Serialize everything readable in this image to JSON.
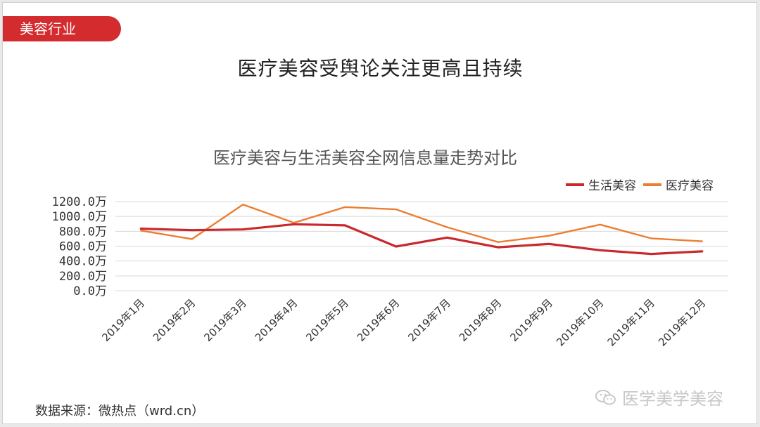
{
  "slide": {
    "tag_label": "美容行业",
    "main_title": "医疗美容受舆论关注更高且持续",
    "source": "数据来源：微热点（wrd.cn）",
    "watermark": "医学美学美容"
  },
  "chart_data": {
    "type": "line",
    "title": "医疗美容与生活美容全网信息量走势对比",
    "categories": [
      "2019年1月",
      "2019年2月",
      "2019年3月",
      "2019年4月",
      "2019年5月",
      "2019年6月",
      "2019年7月",
      "2019年8月",
      "2019年9月",
      "2019年10月",
      "2019年11月",
      "2019年12月"
    ],
    "series": [
      {
        "name": "生活美容",
        "color": "#c8292c",
        "values": [
          835,
          815,
          825,
          895,
          880,
          595,
          715,
          585,
          630,
          545,
          495,
          530
        ]
      },
      {
        "name": "医疗美容",
        "color": "#ed7d31",
        "values": [
          810,
          695,
          1160,
          915,
          1125,
          1095,
          855,
          655,
          740,
          890,
          705,
          665
        ]
      }
    ],
    "yticks": [
      "0.0万",
      "200.0万",
      "400.0万",
      "600.0万",
      "800.0万",
      "1000.0万",
      "1200.0万"
    ],
    "ylim": [
      0,
      1200
    ],
    "grid": true,
    "legend_position": "top-right"
  }
}
